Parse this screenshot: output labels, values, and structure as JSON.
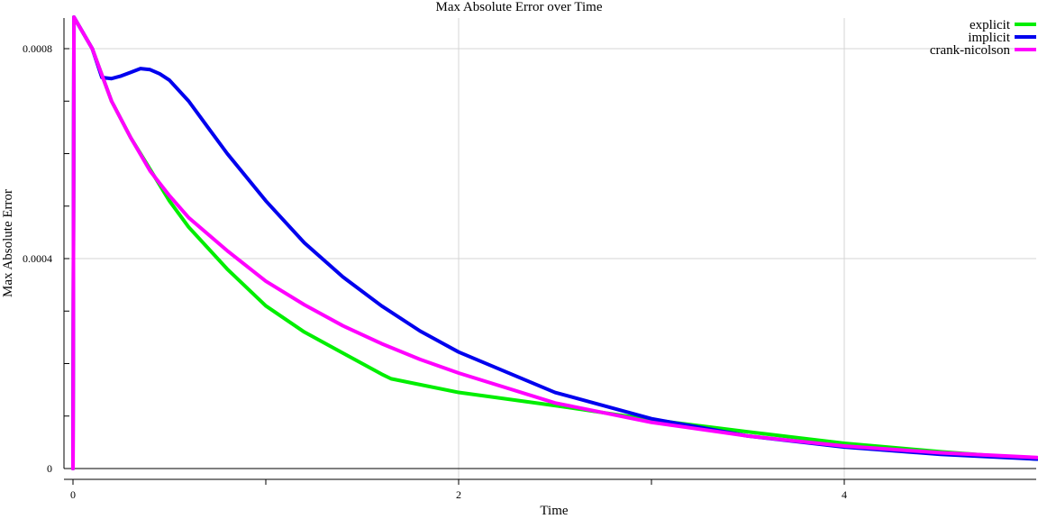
{
  "chart_data": {
    "type": "line",
    "title": "Max Absolute Error over Time",
    "xlabel": "Time",
    "ylabel": "Max Absolute Error",
    "xlim": [
      0,
      5
    ],
    "ylim": [
      0,
      0.00086
    ],
    "x_ticks": [
      0,
      1,
      2,
      3,
      4
    ],
    "x_tick_labels": [
      "0",
      "",
      "2",
      "",
      "4"
    ],
    "y_ticks": [
      0,
      0.0001,
      0.0002,
      0.0003,
      0.0004,
      0.0005,
      0.0006,
      0.0007,
      0.0008
    ],
    "y_tick_labels": [
      "0",
      "",
      "",
      "",
      "0.0004",
      "",
      "",
      "",
      "0.0008"
    ],
    "x_grid": [
      2,
      4
    ],
    "y_grid": [
      0.0004,
      0.0008
    ],
    "legend_position": "top-right",
    "series": [
      {
        "name": "explicit",
        "color": "#00ee00",
        "x": [
          0,
          0.005,
          0.1,
          0.15,
          0.2,
          0.3,
          0.4,
          0.5,
          0.6,
          0.8,
          1.0,
          1.2,
          1.4,
          1.6,
          1.65,
          2.0,
          2.5,
          3.0,
          3.5,
          4.0,
          4.5,
          5.0
        ],
        "values": [
          0,
          0.00086,
          0.0008,
          0.00075,
          0.0007,
          0.00063,
          0.00057,
          0.00051,
          0.00046,
          0.00038,
          0.00031,
          0.00026,
          0.00022,
          0.00018,
          0.000171,
          0.000145,
          0.00012,
          9.3e-05,
          7e-05,
          4.8e-05,
          3.2e-05,
          1.8e-05
        ]
      },
      {
        "name": "implicit",
        "color": "#0000ee",
        "x": [
          0,
          0.005,
          0.1,
          0.15,
          0.2,
          0.25,
          0.3,
          0.35,
          0.4,
          0.45,
          0.5,
          0.6,
          0.7,
          0.8,
          1.0,
          1.2,
          1.4,
          1.6,
          1.8,
          2.0,
          2.5,
          3.0,
          3.5,
          4.0,
          4.5,
          5.0
        ],
        "values": [
          0,
          0.00086,
          0.0008,
          0.000745,
          0.000743,
          0.000748,
          0.000755,
          0.000762,
          0.00076,
          0.000752,
          0.00074,
          0.0007,
          0.00065,
          0.0006,
          0.00051,
          0.00043,
          0.000365,
          0.00031,
          0.000262,
          0.000222,
          0.000145,
          9.5e-05,
          6.2e-05,
          4.1e-05,
          2.7e-05,
          1.8e-05
        ]
      },
      {
        "name": "crank-nicolson",
        "color": "#ff00ff",
        "x": [
          0,
          0.005,
          0.1,
          0.15,
          0.2,
          0.3,
          0.4,
          0.5,
          0.6,
          0.8,
          1.0,
          1.2,
          1.4,
          1.6,
          1.8,
          2.0,
          2.5,
          3.0,
          3.5,
          4.0,
          4.5,
          5.0
        ],
        "values": [
          0,
          0.00086,
          0.0008,
          0.00075,
          0.0007,
          0.00063,
          0.000567,
          0.00052,
          0.000478,
          0.000415,
          0.000357,
          0.000312,
          0.000272,
          0.000238,
          0.000208,
          0.000182,
          0.000125,
          8.8e-05,
          6.2e-05,
          4.3e-05,
          3e-05,
          2.1e-05
        ]
      }
    ]
  }
}
